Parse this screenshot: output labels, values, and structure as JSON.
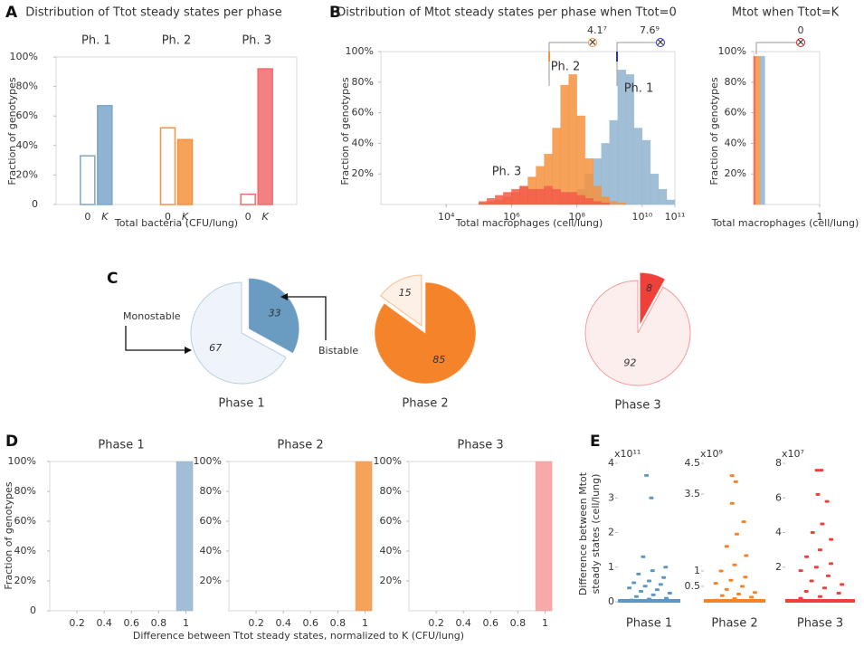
{
  "panel_labels": [
    "A",
    "B",
    "C",
    "D",
    "E"
  ],
  "chart_data": [
    {
      "type": "bar",
      "title": "Distribution of Ttot steady states per phase",
      "categories": [
        "Ph. 1",
        "Ph. 2",
        "Ph. 3"
      ],
      "colors": [
        "#7ba7c9",
        "#f5923e",
        "#f26b6b"
      ],
      "series": [
        {
          "name": "0",
          "values": [
            33,
            52,
            7
          ]
        },
        {
          "name": "K",
          "values": [
            67,
            44,
            92
          ]
        }
      ],
      "ylim": [
        0,
        100
      ],
      "yticks": [
        0,
        {
          "value": 20,
          "label": "20%"
        },
        {
          "value": 40,
          "label": "40%"
        },
        {
          "value": 60,
          "label": "60%"
        },
        {
          "value": 80,
          "label": "80%"
        },
        {
          "value": 100,
          "label": "100%"
        }
      ],
      "ylabel": "Fraction of genotypes",
      "xlabel": "Total bacteria (CFU/lung)"
    },
    {
      "type": "histogram",
      "title": "Distribution of Mtot steady states per phase when Ttot=0",
      "xlog": true,
      "bins": [
        100000.0,
        177800.0,
        316200.0,
        562300.0,
        1000000.0,
        1778000.0,
        3162000.0,
        5623000.0,
        10000000.0,
        17780000.0,
        31620000.0,
        56230000.0,
        100000000.0,
        177800000.0,
        316200000.0,
        562300000.0,
        1000000000.0,
        1778000000.0,
        3162000000.0,
        5623000000.0,
        10000000000.0,
        17780000000.0,
        31620000000.0,
        56230000000.0,
        100000000000.0
      ],
      "series": [
        {
          "name": "Ph. 1",
          "color": "#8fb4cf",
          "values": [
            0,
            0,
            0,
            0,
            0,
            0,
            0,
            0,
            0,
            0,
            2,
            4,
            10,
            20,
            30,
            40,
            55,
            88,
            85,
            50,
            42,
            20,
            10,
            3
          ]
        },
        {
          "name": "Ph. 2",
          "color": "#f5923e",
          "values": [
            1,
            2,
            3,
            5,
            8,
            12,
            18,
            25,
            33,
            50,
            78,
            85,
            58,
            30,
            12,
            5,
            2,
            1,
            0,
            0,
            0,
            0,
            0,
            0
          ]
        },
        {
          "name": "Ph. 3",
          "color": "#f25c4a",
          "values": [
            2,
            4,
            6,
            8,
            10,
            12,
            10,
            10,
            12,
            10,
            8,
            8,
            6,
            4,
            2,
            1,
            0,
            0,
            0,
            0,
            0,
            0,
            0,
            0
          ]
        }
      ],
      "xlim": [
        100,
        100000000000.0
      ],
      "xticks": [
        {
          "value": 10000.0,
          "label": "10⁴"
        },
        {
          "value": 1000000.0,
          "label": "10⁶"
        },
        {
          "value": 100000000.0,
          "label": "10⁸"
        },
        {
          "value": 10000000000.0,
          "label": "10¹⁰"
        },
        {
          "value": 100000000000.0,
          "label": "10¹¹"
        }
      ],
      "ylim": [
        0,
        100
      ],
      "yticks": [
        {
          "value": 20,
          "label": "20%"
        },
        {
          "value": 40,
          "label": "40%"
        },
        {
          "value": 60,
          "label": "60%"
        },
        {
          "value": 80,
          "label": "80%"
        },
        {
          "value": 100,
          "label": "100%"
        }
      ],
      "ylabel": "Fraction of genotypes",
      "xlabel": "Total macrophages (cell/lung)",
      "annotations": [
        {
          "text": "4.1⁷",
          "color": "#f5923e"
        },
        {
          "text": "7.6⁹",
          "color": "#2233cc"
        }
      ]
    },
    {
      "type": "histogram",
      "title": "Mtot when Ttot=K",
      "bins": [
        0,
        0.03,
        0.1,
        0.17
      ],
      "series": [
        {
          "color": "#f25c4a",
          "values": [
            97,
            0,
            0
          ]
        },
        {
          "color": "#f5923e",
          "values": [
            0,
            97,
            0
          ]
        },
        {
          "color": "#8fb4cf",
          "values": [
            0,
            0,
            97
          ]
        }
      ],
      "xlim": [
        0,
        1
      ],
      "xticks": [
        1
      ],
      "ylim": [
        0,
        100
      ],
      "yticks": [
        {
          "value": 20,
          "label": "20%"
        },
        {
          "value": 40,
          "label": "40%"
        },
        {
          "value": 60,
          "label": "60%"
        },
        {
          "value": 80,
          "label": "80%"
        },
        {
          "value": 100,
          "label": "100%"
        }
      ],
      "ylabel": "Fraction of genotypes",
      "xlabel": "Total macrophages (cell/lung)",
      "annotations": [
        {
          "text": "0",
          "color": "#e02020"
        }
      ]
    },
    {
      "type": "pie",
      "title": "Phase 1",
      "color": "#7ba7c9",
      "values": [
        33,
        67
      ],
      "colors": [
        "#6a9bc0",
        "#eef4f9"
      ],
      "labels": [
        "Bistable",
        "Monostable"
      ]
    },
    {
      "type": "pie",
      "title": "Phase 2",
      "color": "#f5832a",
      "values": [
        15,
        85
      ],
      "colors": [
        "#fdf0e6",
        "#f5832a"
      ]
    },
    {
      "type": "pie",
      "title": "Phase 3",
      "color": "#f0403a",
      "values": [
        8,
        92
      ],
      "colors": [
        "#f0403a",
        "#fdeeee"
      ]
    },
    {
      "type": "histogram",
      "title": "Phase 1",
      "color": "#8fb4cf",
      "bins": [
        0.93,
        1.05
      ],
      "values": [
        100
      ],
      "xlim": [
        0,
        1.05
      ],
      "xticks": [
        0.2,
        0.4,
        0.6,
        0.8,
        1
      ],
      "ylim": [
        0,
        100
      ],
      "yticks": [
        0,
        {
          "value": 20,
          "label": "20%"
        },
        {
          "value": 40,
          "label": "40%"
        },
        {
          "value": 60,
          "label": "60%"
        },
        {
          "value": 80,
          "label": "80%"
        },
        {
          "value": 100,
          "label": "100%"
        }
      ],
      "ylabel": "Fraction of genotypes"
    },
    {
      "type": "histogram",
      "title": "Phase 2",
      "color": "#f5923e",
      "bins": [
        0.93,
        1.05
      ],
      "values": [
        100
      ],
      "xlim": [
        0,
        1.05
      ],
      "xticks": [
        0.2,
        0.4,
        0.6,
        0.8,
        1
      ],
      "ylim": [
        0,
        100
      ],
      "yticks": [
        {
          "value": 20,
          "label": "20%"
        },
        {
          "value": 40,
          "label": "40%"
        },
        {
          "value": 60,
          "label": "60%"
        },
        {
          "value": 80,
          "label": "80%"
        },
        {
          "value": 100,
          "label": "100%"
        }
      ],
      "xlabel": "Difference between Ttot steady states, normalized to K (CFU/lung)"
    },
    {
      "type": "histogram",
      "title": "Phase 3",
      "color": "#f79a9a",
      "bins": [
        0.93,
        1.05
      ],
      "values": [
        100
      ],
      "xlim": [
        0,
        1.05
      ],
      "xticks": [
        0.2,
        0.4,
        0.6,
        0.8,
        1
      ],
      "ylim": [
        0,
        100
      ],
      "yticks": [
        {
          "value": 20,
          "label": "20%"
        },
        {
          "value": 40,
          "label": "40%"
        },
        {
          "value": 60,
          "label": "60%"
        },
        {
          "value": 80,
          "label": "80%"
        },
        {
          "value": 100,
          "label": "100%"
        }
      ]
    },
    {
      "type": "strip",
      "title": "Phase 1",
      "color": "#5e97c2",
      "multiplier": "x10¹¹",
      "values": [
        3.65,
        3.0,
        1.3,
        1.0,
        0.9,
        0.8,
        0.7,
        0.6,
        0.55,
        0.5,
        0.45,
        0.4,
        0.35,
        0.3,
        0.25,
        0.2,
        0.15,
        0.1,
        0.08,
        0.05
      ],
      "ylim": [
        0,
        4
      ],
      "yticks": [
        0,
        1,
        2,
        3,
        4
      ],
      "ylabel": [
        "Difference between Mtot",
        "steady states (cell/lung)"
      ]
    },
    {
      "type": "strip",
      "title": "Phase 2",
      "color": "#f5832a",
      "multiplier": "x10⁹",
      "values": [
        4.1,
        3.9,
        3.2,
        2.6,
        2.2,
        1.8,
        1.5,
        1.2,
        1.0,
        0.8,
        0.7,
        0.6,
        0.5,
        0.4,
        0.3,
        0.25,
        0.2,
        0.15,
        0.1,
        0.05
      ],
      "ylim": [
        0,
        4.5
      ],
      "yticks": [
        0.5,
        1,
        3.5,
        4.5
      ]
    },
    {
      "type": "strip",
      "title": "Phase 3",
      "color": "#f0403a",
      "multiplier": "x10⁷",
      "values": [
        7.6,
        7.6,
        6.2,
        5.8,
        4.5,
        4.0,
        3.6,
        3.0,
        2.6,
        2.2,
        2.0,
        1.8,
        1.5,
        1.2,
        1.0,
        0.8,
        0.6,
        0.5,
        0.3,
        0.2
      ],
      "ylim": [
        0,
        8
      ],
      "yticks": [
        2,
        4,
        6,
        8
      ]
    }
  ]
}
